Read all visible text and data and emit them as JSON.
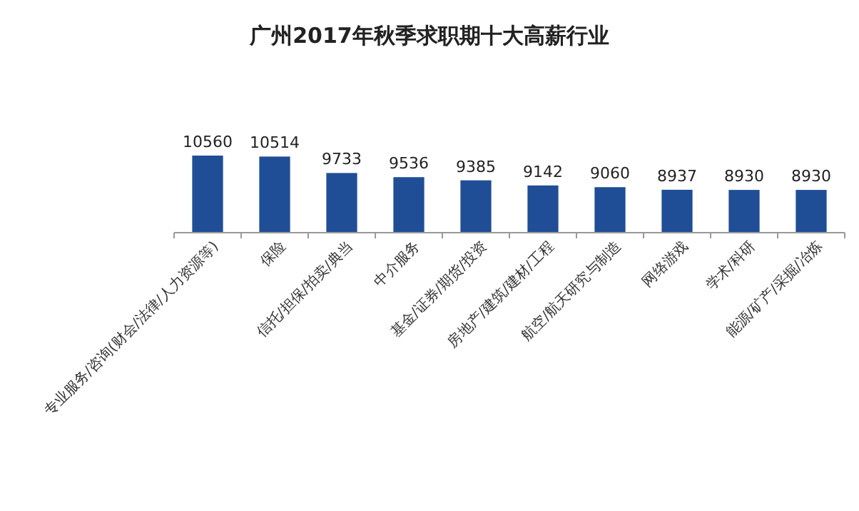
{
  "chart_data": {
    "type": "bar",
    "title": "广州2017年秋季求职期十大高薪行业",
    "categories": [
      "专业服务/咨询(财会/法律/人力资源等)",
      "保险",
      "信托/担保/拍卖/典当",
      "中介服务",
      "基金/证券/期货/投资",
      "房地产/建筑/建材/工程",
      "航空/航天研究与制造",
      "网络游戏",
      "学术/科研",
      "能源/矿产/采掘/冶炼"
    ],
    "values": [
      10560,
      10514,
      9733,
      9536,
      9385,
      9142,
      9060,
      8937,
      8930,
      8930
    ],
    "color": "#1f4e96",
    "ylim": [
      6900,
      10560
    ],
    "data_labels": true,
    "tick_labels": "x"
  }
}
